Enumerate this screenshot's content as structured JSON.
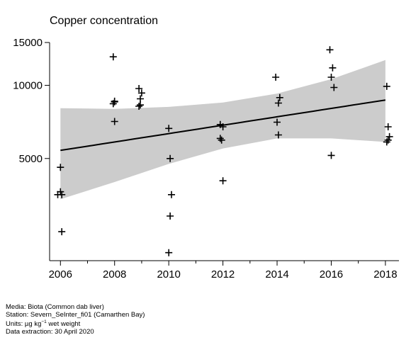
{
  "chart_data": {
    "type": "scatter",
    "title": "Copper concentration",
    "xlabel": "",
    "ylabel": "",
    "y_scale": "log",
    "xlim": [
      2005.6,
      2018.5
    ],
    "ylim": [
      1900,
      15000
    ],
    "x_ticks": [
      2006,
      2008,
      2010,
      2012,
      2014,
      2016,
      2018
    ],
    "x_tick_labels": [
      "2006",
      "2008",
      "2010",
      "2012",
      "2014",
      "2016",
      "2018"
    ],
    "y_ticks": [
      5000,
      10000,
      15000
    ],
    "y_tick_labels": [
      "5000",
      "10000",
      "15000"
    ],
    "grid": false,
    "points": [
      {
        "x": 2005.9,
        "y": 3550
      },
      {
        "x": 2006.0,
        "y": 3650
      },
      {
        "x": 2006.05,
        "y": 3550
      },
      {
        "x": 2006.0,
        "y": 4600
      },
      {
        "x": 2006.05,
        "y": 2500
      },
      {
        "x": 2007.95,
        "y": 13100
      },
      {
        "x": 2007.95,
        "y": 8400
      },
      {
        "x": 2008.0,
        "y": 8600
      },
      {
        "x": 2008.0,
        "y": 8550
      },
      {
        "x": 2008.0,
        "y": 7100
      },
      {
        "x": 2008.9,
        "y": 9700
      },
      {
        "x": 2009.0,
        "y": 9300
      },
      {
        "x": 2008.95,
        "y": 8800
      },
      {
        "x": 2008.9,
        "y": 8200
      },
      {
        "x": 2008.95,
        "y": 8300
      },
      {
        "x": 2010.0,
        "y": 6650
      },
      {
        "x": 2010.05,
        "y": 5000
      },
      {
        "x": 2010.1,
        "y": 3550
      },
      {
        "x": 2010.05,
        "y": 2900
      },
      {
        "x": 2010.0,
        "y": 2050
      },
      {
        "x": 2011.9,
        "y": 6900
      },
      {
        "x": 2012.0,
        "y": 6750
      },
      {
        "x": 2011.9,
        "y": 6050
      },
      {
        "x": 2011.95,
        "y": 5950
      },
      {
        "x": 2012.0,
        "y": 4050
      },
      {
        "x": 2013.95,
        "y": 10800
      },
      {
        "x": 2014.1,
        "y": 8900
      },
      {
        "x": 2014.05,
        "y": 8450
      },
      {
        "x": 2014.0,
        "y": 7050
      },
      {
        "x": 2014.05,
        "y": 6250
      },
      {
        "x": 2015.95,
        "y": 14000
      },
      {
        "x": 2016.05,
        "y": 11800
      },
      {
        "x": 2016.0,
        "y": 10800
      },
      {
        "x": 2016.1,
        "y": 9800
      },
      {
        "x": 2016.0,
        "y": 5150
      },
      {
        "x": 2018.05,
        "y": 9900
      },
      {
        "x": 2018.1,
        "y": 6750
      },
      {
        "x": 2018.15,
        "y": 6150
      },
      {
        "x": 2018.1,
        "y": 5950
      },
      {
        "x": 2018.05,
        "y": 5850
      }
    ],
    "trend": {
      "x": [
        2006,
        2018
      ],
      "y": [
        5400,
        8700
      ]
    },
    "band": {
      "x": [
        2006,
        2008,
        2010,
        2012,
        2014,
        2016,
        2018
      ],
      "upper": [
        8050,
        8000,
        8150,
        8500,
        9250,
        10600,
        12700
      ],
      "lower": [
        3400,
        4000,
        4750,
        5500,
        6050,
        6050,
        5850
      ]
    }
  },
  "footer": {
    "line1": "Media: Biota (Common dab liver)",
    "line2": "Station: Severn_SeInter_fi01 (Camarthen Bay)",
    "units_prefix": "Units:  µg kg",
    "units_sup": "−1",
    "units_suffix": " wet weight",
    "line4": "Data extraction: 30 April 2020"
  }
}
